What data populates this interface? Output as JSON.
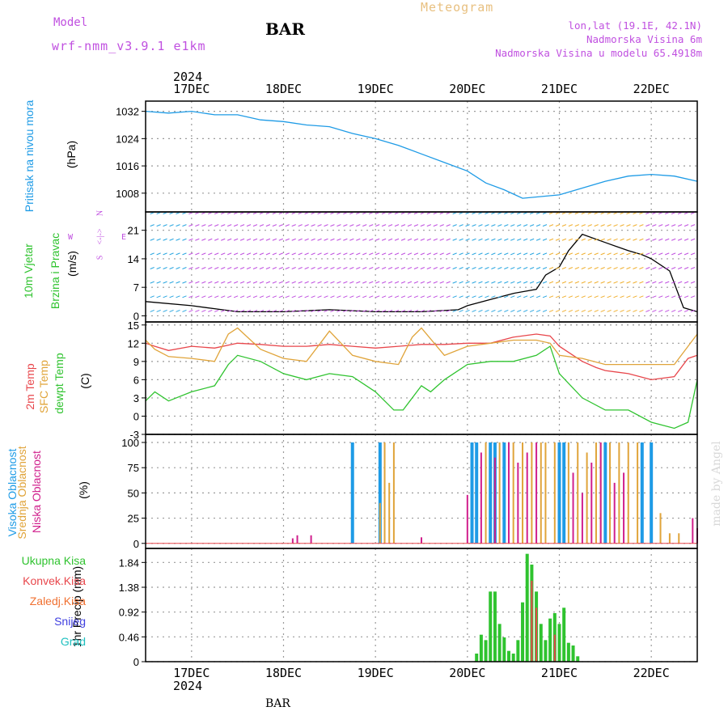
{
  "header": {
    "model_label": "Model",
    "model_name": "wrf-nmm_v3.9.1 e1km",
    "station": "BAR",
    "title": "Meteogram",
    "coords": "lon,lat (19.1E, 42.1N)",
    "elevation": "Nadmorska Visina 6m",
    "model_elevation": "Nadmorska Visina u modelu 65.4918m",
    "year": "2024",
    "footer_station": "BAR",
    "watermark": "made by Angel"
  },
  "colors": {
    "pressure": "#1e9be6",
    "t2m": "#e8464b",
    "sfc": "#e0a43a",
    "dewpt": "#2fc32f",
    "cloud_high": "#1e9be6",
    "cloud_mid": "#e0a43a",
    "cloud_low": "#d01f8c",
    "precip_total": "#2fc32f",
    "precip_conv": "#e8464b",
    "wind_label": "#2fc32f",
    "wind_dir": "#c050e0",
    "grid": "#9a9a9a"
  },
  "chart_data": [
    {
      "type": "line",
      "panel": "pressure",
      "ylabel_main": "Pritisak na nivou mora",
      "ylabel_unit": "(hPa)",
      "yticks": [
        1008,
        1016,
        1024,
        1032
      ],
      "ylim": [
        1002.5,
        1035
      ],
      "grid": true,
      "series": [
        {
          "x": [
            16.5,
            16.75,
            17.0,
            17.25,
            17.5,
            17.75,
            18.0,
            18.25,
            18.5,
            18.75,
            19.0,
            19.25,
            19.5,
            19.75,
            20.0,
            20.2,
            20.4,
            20.6,
            20.8,
            21.0,
            21.25,
            21.5,
            21.75,
            22.0,
            22.25,
            22.5
          ],
          "values": [
            1032,
            1031.5,
            1032,
            1031,
            1031,
            1029.5,
            1029,
            1028,
            1027.5,
            1025.5,
            1024,
            1022,
            1019.5,
            1017,
            1014.5,
            1011,
            1009,
            1006.5,
            1007,
            1007.5,
            1009.5,
            1011.5,
            1013,
            1013.5,
            1013,
            1011.5
          ]
        }
      ]
    },
    {
      "type": "line",
      "panel": "wind",
      "ylabel_main": "10m Vjetar",
      "ylabel_sub": "Brzina i Pravac",
      "ylabel_unit": "(m/s)",
      "direction_legend": [
        "N",
        "<-|->",
        "E",
        "W",
        "S"
      ],
      "yticks": [
        0,
        7,
        14,
        21
      ],
      "ylim": [
        -1.5,
        25.5
      ],
      "grid": true,
      "series": [
        {
          "x": [
            16.5,
            17.0,
            17.5,
            18.0,
            18.5,
            19.0,
            19.5,
            19.9,
            20.0,
            20.25,
            20.5,
            20.75,
            20.85,
            21.0,
            21.1,
            21.25,
            21.5,
            21.75,
            21.9,
            22.0,
            22.2,
            22.35,
            22.5
          ],
          "values": [
            3.5,
            2.5,
            1,
            1,
            1.5,
            1,
            1,
            1.5,
            2.5,
            4,
            5.5,
            6.5,
            10,
            12,
            16,
            20,
            18,
            16,
            15,
            14,
            11,
            2,
            1
          ]
        }
      ]
    },
    {
      "type": "line",
      "panel": "temperature",
      "ylabel_t2m": "2m Temp",
      "ylabel_sfc": "SFC Temp",
      "ylabel_dewpt": "dewpt Temp",
      "ylabel_unit": "(C)",
      "yticks": [
        -3,
        0,
        3,
        6,
        9,
        12,
        15
      ],
      "ylim": [
        -3,
        15.5
      ],
      "grid": true,
      "series": [
        {
          "name": "2m Temp",
          "x": [
            16.5,
            16.6,
            16.75,
            17.0,
            17.25,
            17.5,
            17.75,
            18.0,
            18.25,
            18.5,
            18.75,
            19.0,
            19.25,
            19.5,
            19.75,
            20.0,
            20.25,
            20.5,
            20.75,
            20.9,
            21.0,
            21.25,
            21.4,
            21.5,
            21.75,
            22.0,
            22.25,
            22.4,
            22.5
          ],
          "values": [
            12,
            11.5,
            10.8,
            11.5,
            11.2,
            12,
            11.8,
            11.5,
            11.5,
            11.8,
            11.5,
            11.2,
            11.5,
            11.8,
            11.8,
            12,
            12,
            13,
            13.5,
            13.2,
            11.5,
            9,
            8,
            7.5,
            7,
            6,
            6.5,
            9.5,
            10
          ]
        },
        {
          "name": "SFC Temp",
          "x": [
            16.5,
            16.6,
            16.75,
            17.0,
            17.25,
            17.4,
            17.5,
            17.75,
            18.0,
            18.25,
            18.4,
            18.5,
            18.75,
            19.0,
            19.25,
            19.4,
            19.5,
            19.75,
            20.0,
            20.25,
            20.5,
            20.75,
            20.9,
            21.0,
            21.25,
            21.5,
            21.75,
            22.0,
            22.25,
            22.4,
            22.5
          ],
          "values": [
            12.5,
            11,
            9.8,
            9.5,
            9,
            13.5,
            14.5,
            11,
            9.5,
            9,
            12,
            14,
            10,
            9,
            8.5,
            13,
            14.5,
            10,
            11.5,
            12,
            12.5,
            12.5,
            12,
            10,
            9.5,
            8.5,
            8.5,
            8.5,
            8.5,
            11.5,
            13.5
          ]
        },
        {
          "name": "dewpt Temp",
          "x": [
            16.5,
            16.6,
            16.75,
            17.0,
            17.25,
            17.4,
            17.5,
            17.75,
            18.0,
            18.25,
            18.5,
            18.75,
            19.0,
            19.2,
            19.3,
            19.5,
            19.6,
            19.75,
            20.0,
            20.25,
            20.5,
            20.75,
            20.9,
            21.0,
            21.25,
            21.5,
            21.75,
            22.0,
            22.25,
            22.4,
            22.5
          ],
          "values": [
            2.5,
            4,
            2.5,
            4,
            5,
            8.5,
            10,
            9,
            7,
            6,
            7,
            6.5,
            4,
            1,
            1,
            5,
            4,
            6,
            8.5,
            9,
            9,
            10,
            11.5,
            7,
            3,
            1,
            1,
            -1,
            -2,
            -1,
            6
          ]
        }
      ]
    },
    {
      "type": "bar",
      "panel": "cloud",
      "ylabel_high": "Visoka Oblacnost",
      "ylabel_mid": "Srednja Oblacnost",
      "ylabel_low": "Niska Oblacnost",
      "ylabel_unit": "(%)",
      "yticks": [
        0,
        25,
        50,
        75,
        100
      ],
      "ylim": [
        -5,
        108
      ],
      "grid": true,
      "series": [
        {
          "name": "Visoka Oblacnost",
          "x": [
            18.75,
            19.05,
            20.05,
            20.1,
            20.25,
            20.3,
            20.4,
            21.0,
            21.05,
            21.5,
            21.9,
            22.0
          ],
          "values": [
            100,
            100,
            100,
            100,
            100,
            100,
            100,
            100,
            100,
            100,
            100,
            100
          ]
        },
        {
          "name": "Srednja Oblacnost",
          "x": [
            19.05,
            19.1,
            19.15,
            19.2,
            20.2,
            20.35,
            20.5,
            20.6,
            20.7,
            20.8,
            20.85,
            20.95,
            21.1,
            21.2,
            21.3,
            21.4,
            21.45,
            21.55,
            21.65,
            21.75,
            21.85,
            22.1,
            22.2,
            22.3
          ],
          "values": [
            40,
            100,
            60,
            100,
            100,
            100,
            100,
            100,
            100,
            100,
            100,
            100,
            100,
            100,
            90,
            100,
            100,
            100,
            100,
            100,
            100,
            30,
            10,
            10
          ]
        },
        {
          "name": "Niska Oblacnost",
          "x": [
            18.1,
            18.15,
            18.3,
            19.5,
            20.0,
            20.15,
            20.3,
            20.45,
            20.55,
            20.65,
            20.75,
            21.15,
            21.25,
            21.35,
            21.45,
            21.6,
            21.7,
            22.45,
            22.5
          ],
          "values": [
            5,
            8,
            8,
            6,
            48,
            90,
            85,
            100,
            80,
            90,
            100,
            70,
            50,
            80,
            100,
            60,
            70,
            25,
            15
          ]
        }
      ]
    },
    {
      "type": "bar",
      "panel": "precip",
      "ylabel_unit": "1hr Precip (mm)",
      "legend": [
        "Ukupna Kisa",
        "Konvek.Kisa",
        "Zaledj.Kisa",
        "Snijeg",
        "Grad"
      ],
      "yticks": [
        0,
        0.46,
        0.92,
        1.38,
        1.84
      ],
      "ylim": [
        0,
        2.1
      ],
      "grid": true,
      "series": [
        {
          "name": "Ukupna Kisa",
          "x": [
            20.1,
            20.15,
            20.2,
            20.25,
            20.3,
            20.35,
            20.4,
            20.45,
            20.5,
            20.55,
            20.6,
            20.65,
            20.7,
            20.75,
            20.8,
            20.85,
            20.9,
            20.95,
            21.0,
            21.05,
            21.1,
            21.15,
            21.2
          ],
          "values": [
            0.15,
            0.5,
            0.4,
            1.3,
            1.3,
            0.7,
            0.45,
            0.2,
            0.15,
            0.4,
            1.1,
            2.0,
            1.8,
            1.3,
            0.7,
            0.4,
            0.8,
            0.9,
            0.7,
            1.0,
            0.35,
            0.3,
            0.1
          ]
        },
        {
          "name": "Konvek.Kisa",
          "x": [
            20.7,
            20.75,
            20.95
          ],
          "values": [
            1.5,
            1.0,
            0.5
          ]
        }
      ]
    }
  ],
  "x_axis": {
    "ticks": [
      "17DEC",
      "18DEC",
      "19DEC",
      "20DEC",
      "21DEC",
      "22DEC"
    ],
    "tick_values": [
      17,
      18,
      19,
      20,
      21,
      22
    ],
    "xlim": [
      16.5,
      22.5
    ]
  }
}
